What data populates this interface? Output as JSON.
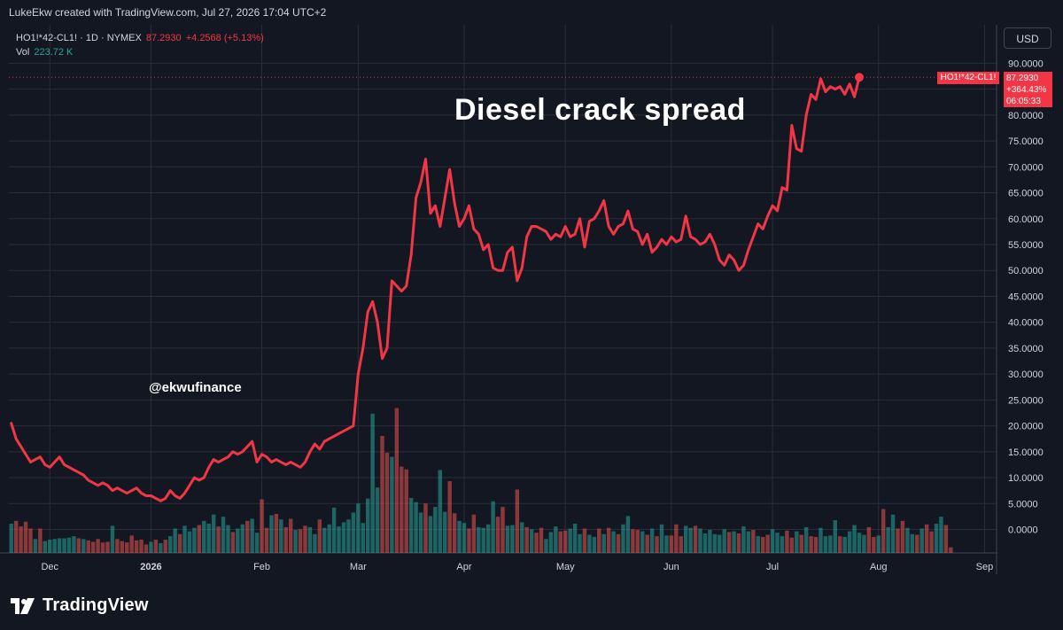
{
  "header": {
    "credit": "LukeEkw created with TradingView.com, Jul 27, 2026 17:04 UTC+2"
  },
  "legend": {
    "symbol": "HO1!*42-CL1! · 1D · NYMEX",
    "last": "87.2930",
    "change": "+4.2568 (+5.13%)",
    "vol_label": "Vol",
    "vol_value": "223.72 K"
  },
  "currency_button": "USD",
  "overlay": {
    "title": "Diesel crack spread",
    "watermark": "@ekwufinance"
  },
  "price_tag": {
    "symbol": "HO1!*42-CL1!",
    "price": "87.2930",
    "pct": "+364.43%",
    "countdown": "06:05:33"
  },
  "footer": {
    "brand": "TradingView",
    "logo_icon": "tradingview-logo-icon"
  },
  "colors": {
    "line": "#f23645",
    "vol_up": "#26a69a",
    "vol_down": "#ef5350",
    "background": "#131722",
    "grid": "#2a2e39"
  },
  "chart_data": {
    "type": "line",
    "title": "Diesel crack spread",
    "ylim": [
      -5,
      95
    ],
    "yticks": [
      0,
      5,
      10,
      15,
      20,
      25,
      30,
      35,
      40,
      45,
      50,
      55,
      60,
      65,
      70,
      75,
      80,
      85,
      90
    ],
    "ytick_labels": [
      "0.0000",
      "5.0000",
      "10.0000",
      "15.0000",
      "20.0000",
      "25.0000",
      "30.0000",
      "35.0000",
      "40.0000",
      "45.0000",
      "50.0000",
      "55.0000",
      "60.0000",
      "65.0000",
      "70.0000",
      "75.0000",
      "80.0000",
      "85.0000",
      "90.0000"
    ],
    "xaxis": [
      {
        "label": "Dec",
        "index": 8
      },
      {
        "label": "2026",
        "index": 29
      },
      {
        "label": "Feb",
        "index": 52
      },
      {
        "label": "Mar",
        "index": 72
      },
      {
        "label": "Apr",
        "index": 94
      },
      {
        "label": "May",
        "index": 115
      },
      {
        "label": "Jun",
        "index": 137
      },
      {
        "label": "Jul",
        "index": 158
      },
      {
        "label": "Aug",
        "index": 180
      },
      {
        "label": "Sep",
        "index": 202
      }
    ],
    "total_slots": 205,
    "grid": true,
    "series": [
      {
        "name": "HO1!*42-CL1!",
        "values": [
          20.5,
          17.5,
          16.0,
          14.5,
          13.0,
          13.5,
          14.0,
          12.5,
          12.0,
          13.0,
          14.0,
          12.5,
          12.0,
          11.5,
          11.0,
          10.5,
          9.5,
          9.0,
          8.5,
          9.0,
          8.5,
          7.5,
          8.0,
          7.5,
          7.0,
          7.5,
          8.0,
          7.0,
          6.5,
          6.5,
          6.0,
          5.5,
          6.0,
          7.5,
          6.5,
          6.0,
          7.0,
          8.5,
          10.0,
          9.5,
          10.0,
          12.0,
          13.5,
          13.0,
          13.5,
          14.0,
          15.0,
          14.5,
          15.0,
          16.0,
          17.0,
          13.0,
          14.5,
          14.0,
          13.0,
          13.5,
          13.0,
          12.5,
          13.0,
          12.5,
          12.0,
          13.0,
          15.0,
          16.5,
          15.5,
          17.0,
          17.5,
          18.0,
          18.5,
          19.0,
          19.5,
          20.0,
          30.0,
          35.0,
          42.0,
          44.0,
          40.0,
          33.0,
          35.0,
          48.0,
          47.0,
          46.0,
          47.0,
          53.0,
          64.0,
          67.0,
          71.5,
          61.0,
          62.5,
          58.5,
          64.0,
          69.5,
          63.0,
          58.5,
          60.0,
          62.5,
          58.0,
          57.0,
          54.0,
          55.0,
          50.5,
          50.0,
          50.0,
          53.5,
          54.5,
          48.0,
          50.5,
          56.5,
          58.5,
          58.5,
          58.0,
          57.5,
          56.0,
          57.0,
          56.5,
          58.5,
          56.5,
          57.0,
          60.0,
          54.5,
          59.5,
          60.0,
          61.5,
          63.5,
          58.5,
          57.0,
          58.5,
          59.0,
          61.5,
          58.0,
          57.5,
          55.0,
          57.0,
          53.5,
          54.5,
          56.0,
          55.0,
          56.5,
          55.5,
          56.0,
          60.5,
          56.5,
          56.0,
          55.0,
          55.5,
          57.0,
          55.0,
          52.0,
          51.0,
          53.0,
          52.0,
          50.0,
          51.0,
          54.0,
          56.5,
          59.0,
          58.0,
          60.5,
          62.5,
          61.5,
          66.0,
          65.5,
          78.0,
          73.5,
          73.0,
          80.0,
          84.0,
          83.0,
          87.0,
          84.5,
          85.5,
          85.0,
          85.5,
          84.0,
          86.0,
          83.5,
          87.293
        ]
      }
    ],
    "volume": {
      "name": "Vol",
      "last": "223.72 K",
      "values": [
        4.2,
        4.6,
        3.8,
        4.5,
        3.5,
        2.0,
        3.5,
        1.7,
        1.9,
        2.0,
        2.1,
        2.1,
        2.2,
        2.4,
        2.1,
        2.0,
        1.8,
        1.6,
        2.0,
        1.5,
        1.6,
        3.9,
        2.0,
        1.7,
        1.5,
        2.5,
        1.8,
        1.9,
        1.2,
        1.6,
        1.9,
        1.4,
        1.9,
        2.4,
        3.5,
        2.7,
        3.9,
        3.1,
        3.6,
        4.0,
        4.6,
        4.2,
        5.5,
        3.8,
        5.2,
        4.0,
        3.0,
        3.5,
        4.1,
        4.6,
        4.9,
        2.9,
        7.7,
        3.6,
        5.4,
        5.6,
        4.8,
        3.7,
        4.9,
        3.3,
        3.4,
        3.9,
        3.7,
        2.7,
        4.8,
        3.6,
        4.1,
        6.5,
        3.8,
        4.4,
        4.8,
        5.8,
        7.1,
        4.3,
        7.8,
        20.0,
        9.4,
        16.8,
        14.4,
        13.8,
        20.8,
        12.4,
        12.0,
        7.9,
        7.3,
        5.8,
        7.1,
        5.3,
        6.6,
        11.9,
        5.9,
        10.3,
        5.7,
        4.6,
        4.3,
        3.5,
        5.5,
        3.7,
        3.6,
        4.1,
        7.4,
        5.2,
        6.6,
        3.9,
        4.0,
        9.1,
        4.4,
        3.7,
        3.4,
        2.9,
        3.6,
        2.0,
        3.0,
        3.8,
        3.1,
        3.2,
        3.5,
        4.2,
        2.7,
        3.5,
        2.6,
        2.3,
        3.5,
        2.7,
        3.6,
        3.1,
        2.7,
        4.1,
        5.3,
        3.4,
        3.3,
        3.1,
        2.6,
        3.5,
        2.4,
        4.1,
        2.5,
        2.5,
        4.1,
        2.4,
        3.9,
        3.6,
        3.9,
        3.5,
        2.8,
        3.3,
        2.7,
        2.6,
        3.4,
        3.0,
        3.1,
        2.8,
        3.8,
        3.1,
        3.3,
        2.4,
        2.3,
        2.6,
        3.4,
        2.9,
        2.4,
        3.2,
        2.2,
        3.1,
        2.6,
        3.7,
        2.4,
        2.3,
        3.6,
        2.4,
        2.5,
        4.7,
        2.4,
        2.3,
        3.1,
        4.0,
        2.9,
        2.6,
        3.7,
        2.3,
        2.5,
        6.3,
        3.7,
        5.5,
        3.5,
        4.6,
        3.6,
        2.7,
        2.6,
        3.5,
        4.1,
        3.1,
        4.2,
        5.2,
        4.0,
        0.8
      ],
      "directions": [
        1,
        0,
        0,
        0,
        0,
        1,
        0,
        1,
        1,
        1,
        1,
        1,
        1,
        1,
        0,
        1,
        0,
        0,
        0,
        0,
        0,
        1,
        0,
        0,
        0,
        0,
        0,
        0,
        0,
        1,
        0,
        1,
        0,
        1,
        1,
        0,
        1,
        1,
        1,
        0,
        1,
        1,
        1,
        0,
        1,
        1,
        0,
        1,
        1,
        0,
        1,
        1,
        0,
        0,
        1,
        0,
        1,
        0,
        0,
        1,
        0,
        0,
        1,
        1,
        0,
        1,
        1,
        1,
        1,
        1,
        1,
        1,
        1,
        1,
        1,
        1,
        1,
        0,
        0,
        1,
        0,
        0,
        0,
        1,
        1,
        1,
        0,
        1,
        1,
        1,
        1,
        0,
        0,
        1,
        1,
        0,
        0,
        1,
        1,
        1,
        1,
        0,
        0,
        1,
        1,
        0,
        1,
        0,
        1,
        0,
        0,
        1,
        1,
        1,
        0,
        0,
        1,
        1,
        1,
        0,
        1,
        1,
        0,
        1,
        0,
        1,
        0,
        1,
        1,
        0,
        0,
        1,
        0,
        1,
        0,
        1,
        1,
        0,
        0,
        0,
        1,
        1,
        0,
        1,
        1,
        1,
        1,
        1,
        1,
        0,
        1,
        0,
        1,
        1,
        0,
        1,
        0,
        0,
        1,
        1,
        1,
        0,
        0,
        1,
        0,
        1,
        0,
        0,
        1,
        1,
        1,
        1,
        0,
        1,
        1,
        1,
        1,
        1,
        0,
        0,
        1,
        0,
        1,
        1,
        0,
        0,
        1,
        1,
        0,
        1,
        0,
        0,
        1,
        1,
        0,
        0,
        1
      ]
    }
  }
}
